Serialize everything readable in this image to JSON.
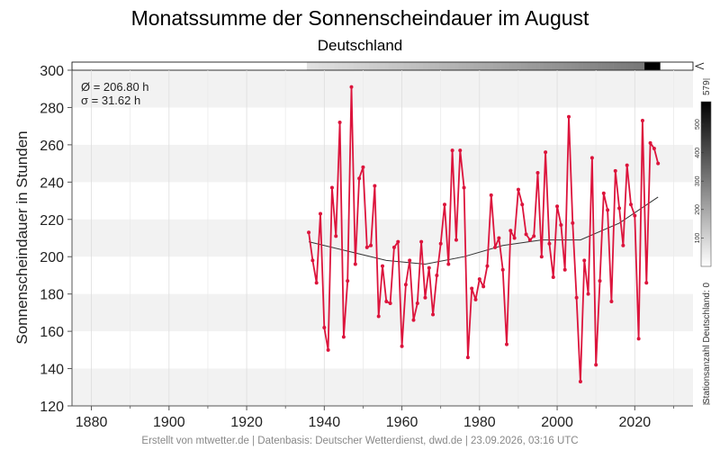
{
  "chart_data": {
    "type": "line",
    "title": "Monatssumme der Sonnenscheindauer im August",
    "subtitle": "Deutschland",
    "ylabel": "Sonnenscheindauer in Stunden",
    "xlim": [
      1875,
      2035
    ],
    "ylim": [
      120,
      300
    ],
    "xticks": [
      1880,
      1900,
      1920,
      1940,
      1960,
      1980,
      2000,
      2020
    ],
    "yticks": [
      120,
      140,
      160,
      180,
      200,
      220,
      240,
      260,
      280,
      300
    ],
    "stats": {
      "mean": "Ø = 206.80 h",
      "sigma": "σ = 31.62 h"
    },
    "series": [
      {
        "color": "#dc143c",
        "x": [
          1936,
          1937,
          1938,
          1939,
          1940,
          1941,
          1942,
          1943,
          1944,
          1945,
          1946,
          1947,
          1948,
          1949,
          1950,
          1951,
          1952,
          1953,
          1954,
          1955,
          1956,
          1957,
          1958,
          1959,
          1960,
          1961,
          1962,
          1963,
          1964,
          1965,
          1966,
          1967,
          1968,
          1969,
          1970,
          1971,
          1972,
          1973,
          1974,
          1975,
          1976,
          1977,
          1978,
          1979,
          1980,
          1981,
          1982,
          1983,
          1984,
          1985,
          1986,
          1987,
          1988,
          1989,
          1990,
          1991,
          1992,
          1993,
          1994,
          1995,
          1996,
          1997,
          1998,
          1999,
          2000,
          2001,
          2002,
          2003,
          2004,
          2005,
          2006,
          2007,
          2008,
          2009,
          2010,
          2011,
          2012,
          2013,
          2014,
          2015,
          2016,
          2017,
          2018,
          2019,
          2020,
          2021,
          2022,
          2023,
          2024,
          2025,
          2026
        ],
        "values": [
          213,
          198,
          186,
          223,
          162,
          150,
          237,
          211,
          272,
          157,
          187,
          291,
          196,
          242,
          248,
          205,
          206,
          238,
          168,
          195,
          176,
          175,
          205,
          208,
          152,
          185,
          198,
          166,
          175,
          208,
          178,
          194,
          169,
          190,
          207,
          228,
          196,
          257,
          209,
          257,
          237,
          146,
          183,
          177,
          188,
          184,
          195,
          233,
          205,
          210,
          193,
          153,
          214,
          210,
          236,
          228,
          212,
          209,
          211,
          245,
          200,
          256,
          207,
          189,
          227,
          217,
          193,
          275,
          218,
          178,
          133,
          198,
          180,
          253,
          142,
          187,
          234,
          225,
          176,
          246,
          226,
          206,
          249,
          228,
          222,
          156,
          273,
          186,
          261,
          258,
          250
        ]
      },
      {
        "color": "#333333",
        "x": [
          1936,
          1946,
          1956,
          1966,
          1976,
          1986,
          1996,
          2006,
          2016,
          2026
        ],
        "values": [
          208,
          203,
          198,
          196,
          200,
          206,
          209,
          209,
          218,
          232
        ]
      }
    ],
    "station_band": {
      "from_year": 1936,
      "to_year": 2026,
      "highlight_from": 2023,
      "highlight_to": 2026,
      "cb_min": 0,
      "cb_max": 579,
      "cb_ticks": [
        100,
        200,
        300,
        400,
        500
      ]
    },
    "colorbar_label": "Stationsanzahl Deutschland: 0",
    "colorbar_max_label": "579"
  },
  "footer": "Erstellt von mtwetter.de | Datenbasis: Deutscher Wetterdienst, dwd.de | 23.09.2026, 03:16 UTC"
}
